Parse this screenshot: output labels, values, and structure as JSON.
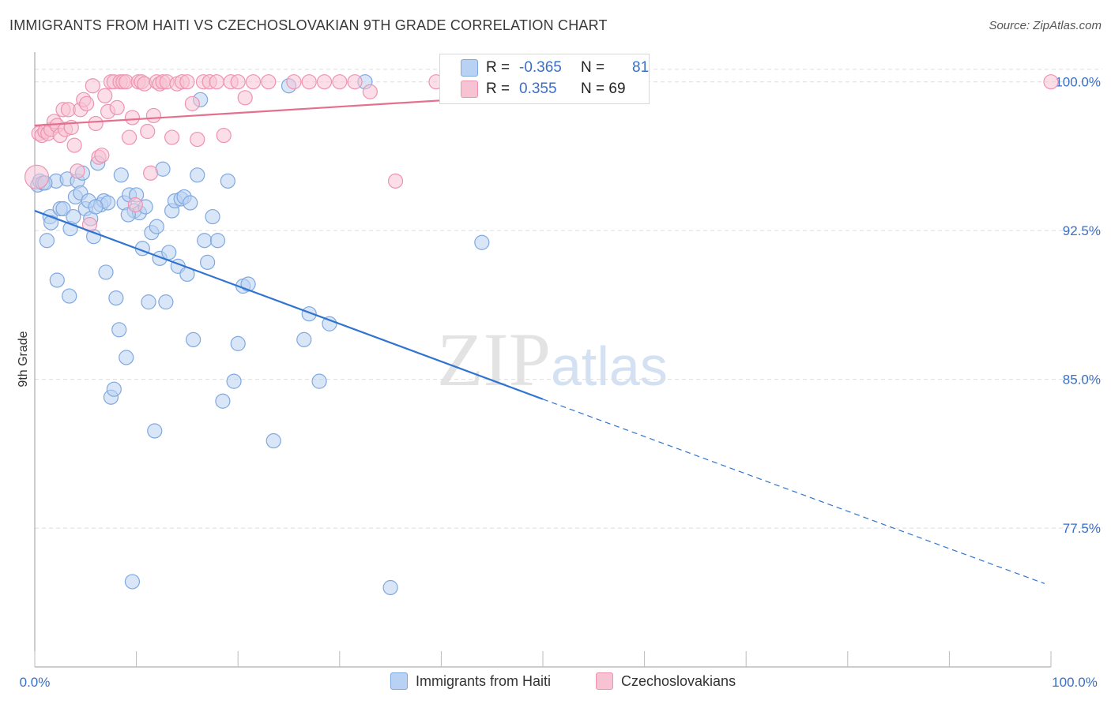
{
  "title": "IMMIGRANTS FROM HAITI VS CZECHOSLOVAKIAN 9TH GRADE CORRELATION CHART",
  "source": "Source: ZipAtlas.com",
  "watermark": {
    "zip": "ZIP",
    "atlas": "atlas"
  },
  "legend_top": [
    {
      "r_label": "R =",
      "r_value": "-0.365",
      "n_label": "N =",
      "n_value": "81"
    },
    {
      "r_label": "R =",
      "r_value": "0.355",
      "n_label": "N = 69"
    }
  ],
  "legend_bottom": [
    "Immigrants from Haiti",
    "Czechoslovakians"
  ],
  "colors": {
    "haiti_fill": "#b9d1f2",
    "haiti_stroke": "#7fa8e0",
    "haiti_line": "#2f74d0",
    "czech_fill": "#f7c3d3",
    "czech_stroke": "#ee93b1",
    "czech_line": "#e4708f",
    "tick": "#3a6fc7",
    "grid": "#dddddd"
  },
  "chart_data": {
    "type": "scatter",
    "title": "IMMIGRANTS FROM HAITI VS CZECHOSLOVAKIAN 9TH GRADE CORRELATION CHART",
    "xlabel": "",
    "ylabel": "9th Grade",
    "xlim": [
      0,
      100
    ],
    "ylim": [
      70.5,
      101.5
    ],
    "x_tick_labels": [
      "0.0%",
      "100.0%"
    ],
    "y_ticks": [
      77.5,
      85.0,
      92.5,
      100.0
    ],
    "y_tick_labels": [
      "77.5%",
      "85.0%",
      "92.5%",
      "100.0%"
    ],
    "grid": true,
    "legend": "top-center",
    "series": [
      {
        "name": "Immigrants from Haiti",
        "r": -0.365,
        "n": 81,
        "trend": {
          "x0": 0,
          "y0": 93.5,
          "x1": 50,
          "y1": 84.0,
          "dashed_to_x": 100,
          "dashed_to_y": 74.7
        },
        "points": [
          [
            0.3,
            94.8
          ],
          [
            0.5,
            95.0
          ],
          [
            0.8,
            94.9
          ],
          [
            1.2,
            92.0
          ],
          [
            1.5,
            93.2
          ],
          [
            1.6,
            92.9
          ],
          [
            2.1,
            95.0
          ],
          [
            2.2,
            90.0
          ],
          [
            2.5,
            93.6
          ],
          [
            2.8,
            93.6
          ],
          [
            3.2,
            95.1
          ],
          [
            3.4,
            89.2
          ],
          [
            3.5,
            92.6
          ],
          [
            3.8,
            93.2
          ],
          [
            4.0,
            94.2
          ],
          [
            4.2,
            95.0
          ],
          [
            4.5,
            94.4
          ],
          [
            4.7,
            95.4
          ],
          [
            5.0,
            93.6
          ],
          [
            5.3,
            94.0
          ],
          [
            5.5,
            93.1
          ],
          [
            5.8,
            92.2
          ],
          [
            6.2,
            95.9
          ],
          [
            6.5,
            93.8
          ],
          [
            6.8,
            94.0
          ],
          [
            7.0,
            90.4
          ],
          [
            7.2,
            93.9
          ],
          [
            7.5,
            84.1
          ],
          [
            7.8,
            84.5
          ],
          [
            8.0,
            89.1
          ],
          [
            8.3,
            87.5
          ],
          [
            8.5,
            95.3
          ],
          [
            8.8,
            93.9
          ],
          [
            9.0,
            86.1
          ],
          [
            9.3,
            94.3
          ],
          [
            9.6,
            74.8
          ],
          [
            9.8,
            93.5
          ],
          [
            10.0,
            94.3
          ],
          [
            10.3,
            93.4
          ],
          [
            10.6,
            91.6
          ],
          [
            10.9,
            93.7
          ],
          [
            11.2,
            88.9
          ],
          [
            11.5,
            92.4
          ],
          [
            11.8,
            82.4
          ],
          [
            12.0,
            92.7
          ],
          [
            12.3,
            91.1
          ],
          [
            12.6,
            95.6
          ],
          [
            12.9,
            88.9
          ],
          [
            13.2,
            91.4
          ],
          [
            13.5,
            93.5
          ],
          [
            13.8,
            94.0
          ],
          [
            14.1,
            90.7
          ],
          [
            14.4,
            94.1
          ],
          [
            14.7,
            94.2
          ],
          [
            15.0,
            90.3
          ],
          [
            15.3,
            93.9
          ],
          [
            15.6,
            87.0
          ],
          [
            16.0,
            95.3
          ],
          [
            16.3,
            99.1
          ],
          [
            16.7,
            92.0
          ],
          [
            17.0,
            90.9
          ],
          [
            17.5,
            93.2
          ],
          [
            18.0,
            92.0
          ],
          [
            18.5,
            83.9
          ],
          [
            19.0,
            95.0
          ],
          [
            19.6,
            84.9
          ],
          [
            20.0,
            86.8
          ],
          [
            20.5,
            89.7
          ],
          [
            21.0,
            89.8
          ],
          [
            23.5,
            81.9
          ],
          [
            25.0,
            99.8
          ],
          [
            26.5,
            87.0
          ],
          [
            27.0,
            88.3
          ],
          [
            28.0,
            84.9
          ],
          [
            29.0,
            87.8
          ],
          [
            32.5,
            100.0
          ],
          [
            35.0,
            74.5
          ],
          [
            44.0,
            91.9
          ],
          [
            1.0,
            94.9
          ],
          [
            6.0,
            93.7
          ],
          [
            9.2,
            93.3
          ]
        ]
      },
      {
        "name": "Czechoslovakians",
        "r": 0.355,
        "n": 69,
        "trend": {
          "x0": 0,
          "y0": 97.8,
          "x1": 57,
          "y1": 99.6
        },
        "points": [
          [
            0.2,
            95.2
          ],
          [
            0.4,
            97.4
          ],
          [
            0.7,
            97.3
          ],
          [
            1.0,
            97.5
          ],
          [
            1.3,
            97.4
          ],
          [
            1.6,
            97.6
          ],
          [
            1.9,
            98.0
          ],
          [
            2.2,
            97.8
          ],
          [
            2.5,
            97.3
          ],
          [
            2.8,
            98.6
          ],
          [
            3.0,
            97.6
          ],
          [
            3.3,
            98.6
          ],
          [
            3.6,
            97.7
          ],
          [
            3.9,
            96.8
          ],
          [
            4.2,
            95.5
          ],
          [
            4.5,
            98.6
          ],
          [
            4.8,
            99.1
          ],
          [
            5.1,
            98.9
          ],
          [
            5.4,
            92.8
          ],
          [
            5.7,
            99.8
          ],
          [
            6.0,
            97.9
          ],
          [
            6.3,
            96.2
          ],
          [
            6.6,
            96.3
          ],
          [
            6.9,
            99.3
          ],
          [
            7.2,
            98.5
          ],
          [
            7.5,
            100.0
          ],
          [
            7.8,
            100.0
          ],
          [
            8.1,
            98.7
          ],
          [
            8.4,
            100.0
          ],
          [
            8.7,
            100.0
          ],
          [
            9.0,
            100.0
          ],
          [
            9.3,
            97.2
          ],
          [
            9.6,
            98.2
          ],
          [
            9.9,
            93.8
          ],
          [
            10.2,
            100.0
          ],
          [
            10.5,
            100.0
          ],
          [
            10.8,
            99.9
          ],
          [
            11.1,
            97.5
          ],
          [
            11.4,
            95.4
          ],
          [
            11.7,
            98.3
          ],
          [
            12.0,
            100.0
          ],
          [
            12.3,
            99.9
          ],
          [
            12.6,
            100.0
          ],
          [
            13.0,
            100.0
          ],
          [
            13.5,
            97.2
          ],
          [
            14.0,
            99.9
          ],
          [
            14.5,
            100.0
          ],
          [
            15.0,
            100.0
          ],
          [
            15.5,
            98.9
          ],
          [
            16.0,
            97.1
          ],
          [
            16.6,
            100.0
          ],
          [
            17.2,
            100.0
          ],
          [
            17.9,
            100.0
          ],
          [
            18.6,
            97.3
          ],
          [
            19.3,
            100.0
          ],
          [
            20.0,
            100.0
          ],
          [
            20.7,
            99.2
          ],
          [
            21.5,
            100.0
          ],
          [
            23.0,
            100.0
          ],
          [
            25.5,
            100.0
          ],
          [
            27.0,
            100.0
          ],
          [
            28.5,
            100.0
          ],
          [
            30.0,
            100.0
          ],
          [
            31.5,
            100.0
          ],
          [
            33.0,
            99.5
          ],
          [
            35.5,
            95.0
          ],
          [
            39.5,
            100.0
          ],
          [
            47.5,
            100.0
          ],
          [
            100.0,
            100.0
          ]
        ]
      }
    ]
  }
}
